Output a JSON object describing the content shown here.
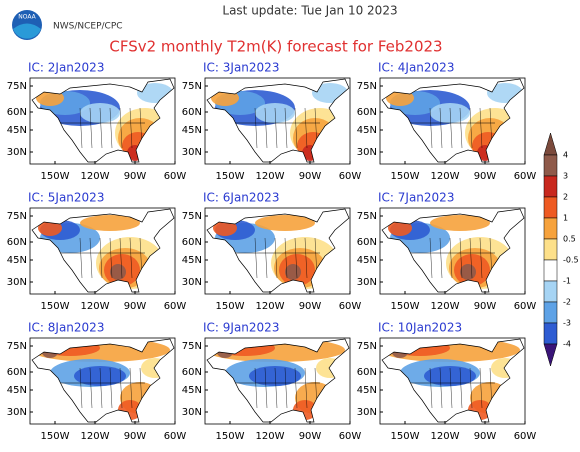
{
  "header": {
    "logo": "NOAA",
    "agency": "NWS/NCEP/CPC",
    "updated": "Last update: Tue Jan 10 2023",
    "title": "CFSv2 monthly T2m(K) forecast for Feb2023"
  },
  "map": {
    "lat_labels": [
      "75N",
      "60N",
      "45N",
      "30N"
    ],
    "lon_labels": [
      "150W",
      "120W",
      "90W",
      "60W"
    ]
  },
  "panels": [
    {
      "label": "IC: 2Jan2023"
    },
    {
      "label": "IC: 3Jan2023"
    },
    {
      "label": "IC: 4Jan2023"
    },
    {
      "label": "IC: 5Jan2023"
    },
    {
      "label": "IC: 6Jan2023"
    },
    {
      "label": "IC: 7Jan2023"
    },
    {
      "label": "IC: 8Jan2023"
    },
    {
      "label": "IC: 9Jan2023"
    },
    {
      "label": "IC: 10Jan2023"
    }
  ],
  "colorbar": {
    "labels": [
      4,
      3,
      2,
      1,
      0.5,
      -0.5,
      -1,
      -2,
      -3,
      -4
    ],
    "colors": [
      "#7b4a3c",
      "#8f5a4a",
      "#c8281e",
      "#ee5a22",
      "#f6a23c",
      "#fde08a",
      "#ffffff",
      "#a6d4f4",
      "#5ea2e6",
      "#2e5cd2",
      "#2424a8",
      "#3a1478"
    ]
  }
}
